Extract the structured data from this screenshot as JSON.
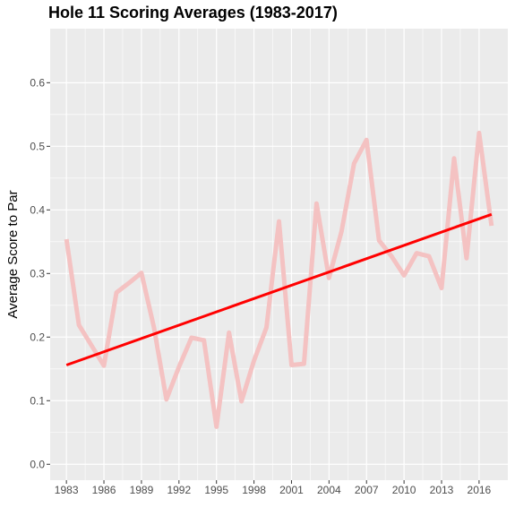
{
  "chart_data": {
    "type": "line",
    "title": "Hole 11 Scoring Averages (1983-2017)",
    "xlabel": "",
    "ylabel": "Average Score to Par",
    "xlim": [
      1981.7,
      2018.3
    ],
    "ylim": [
      -0.025,
      0.685
    ],
    "x_ticks": [
      1983,
      1986,
      1989,
      1992,
      1995,
      1998,
      2001,
      2004,
      2007,
      2010,
      2013,
      2016
    ],
    "x_tick_labels": [
      "1983",
      "1986",
      "1989",
      "1992",
      "1995",
      "1998",
      "2001",
      "2004",
      "2007",
      "2010",
      "2013",
      "2016"
    ],
    "y_ticks": [
      0.0,
      0.1,
      0.2,
      0.3,
      0.4,
      0.5,
      0.6
    ],
    "y_tick_labels": [
      "0.0",
      "0.1",
      "0.2",
      "0.3",
      "0.4",
      "0.5",
      "0.6"
    ],
    "grid": true,
    "background": "#ebebeb",
    "series": [
      {
        "color": "#f4c2c2",
        "x": [
          1983,
          1984,
          1985,
          1986,
          1987,
          1988,
          1989,
          1990,
          1991,
          1992,
          1993,
          1994,
          1995,
          1996,
          1997,
          1998,
          1999,
          2000,
          2001,
          2002,
          2003,
          2004,
          2005,
          2006,
          2007,
          2008,
          2009,
          2010,
          2011,
          2012,
          2013,
          2014,
          2015,
          2016,
          2017
        ],
        "values": [
          0.354,
          0.219,
          0.187,
          0.155,
          0.27,
          0.285,
          0.301,
          0.215,
          0.102,
          0.153,
          0.199,
          0.195,
          0.059,
          0.207,
          0.099,
          0.163,
          0.215,
          0.382,
          0.156,
          0.158,
          0.41,
          0.293,
          0.366,
          0.473,
          0.51,
          0.352,
          0.327,
          0.297,
          0.332,
          0.327,
          0.277,
          0.481,
          0.324,
          0.521,
          0.375
        ]
      },
      {
        "color": "#ff0000",
        "x": [
          1983,
          2017
        ],
        "values": [
          0.156,
          0.393
        ]
      }
    ]
  }
}
